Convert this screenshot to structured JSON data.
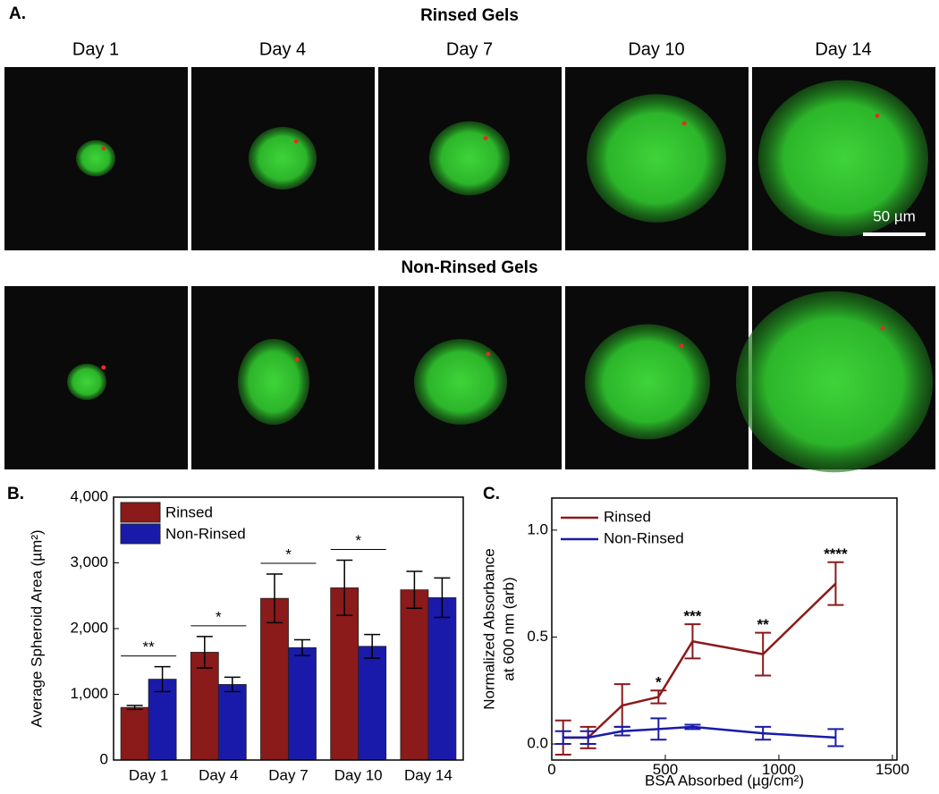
{
  "panel_a": {
    "label": "A.",
    "rows": [
      "Rinsed Gels",
      "Non-Rinsed Gels"
    ],
    "columns": [
      "Day 1",
      "Day 4",
      "Day 7",
      "Day 10",
      "Day 14"
    ],
    "scale_bar": "50 µm"
  },
  "chart_data": [
    {
      "type": "bar",
      "label": "B.",
      "ylabel": "Average Spheroid Area (µm²)",
      "categories": [
        "Day 1",
        "Day 4",
        "Day 7",
        "Day 10",
        "Day 14"
      ],
      "series": [
        {
          "name": "Rinsed",
          "color": "#8b1a1a",
          "values": [
            800,
            1640,
            2460,
            2620,
            2590
          ],
          "errors": [
            30,
            240,
            370,
            420,
            280
          ]
        },
        {
          "name": "Non-Rinsed",
          "color": "#1a1aaa",
          "values": [
            1230,
            1150,
            1710,
            1730,
            2470
          ],
          "errors": [
            190,
            110,
            120,
            180,
            300
          ]
        }
      ],
      "significance": [
        "**",
        "*",
        "*",
        "*",
        null
      ],
      "ylim": [
        0,
        4000
      ],
      "yticks": [
        0,
        {
          "value": 1000,
          "label": "1,000"
        },
        {
          "value": 2000,
          "label": "2,000"
        },
        {
          "value": 3000,
          "label": "3,000"
        },
        {
          "value": 4000,
          "label": "4,000"
        }
      ],
      "legend": "upper left"
    },
    {
      "type": "line",
      "label": "C.",
      "ylabel": [
        "Normalized Absorbance",
        "at 600 nm (arb)"
      ],
      "xlabel": "BSA Absorbed (µg/cm²)",
      "x": [
        50,
        160,
        310,
        470,
        620,
        930,
        1250
      ],
      "series": [
        {
          "name": "Rinsed",
          "color": "#8b1a1a",
          "values": [
            0.03,
            0.03,
            0.18,
            0.22,
            0.48,
            0.42,
            0.75
          ],
          "errors": [
            0.08,
            0.05,
            0.1,
            0.03,
            0.08,
            0.1,
            0.1
          ],
          "significance": [
            null,
            null,
            null,
            "*",
            "***",
            "**",
            "****"
          ]
        },
        {
          "name": "Non-Rinsed",
          "color": "#1a1aaa",
          "values": [
            0.03,
            0.03,
            0.06,
            0.07,
            0.08,
            0.05,
            0.03
          ],
          "errors": [
            0.03,
            0.03,
            0.02,
            0.05,
            0.01,
            0.03,
            0.04
          ]
        }
      ],
      "xlim": [
        0,
        1520
      ],
      "ylim": [
        -0.075,
        1.15
      ],
      "xticks": [
        0,
        500,
        1000,
        1500
      ],
      "yticks": [
        {
          "value": 0,
          "label": "0.0"
        },
        {
          "value": 0.5,
          "label": "0.5"
        },
        {
          "value": 1,
          "label": "1.0"
        }
      ],
      "legend": "upper left"
    }
  ]
}
